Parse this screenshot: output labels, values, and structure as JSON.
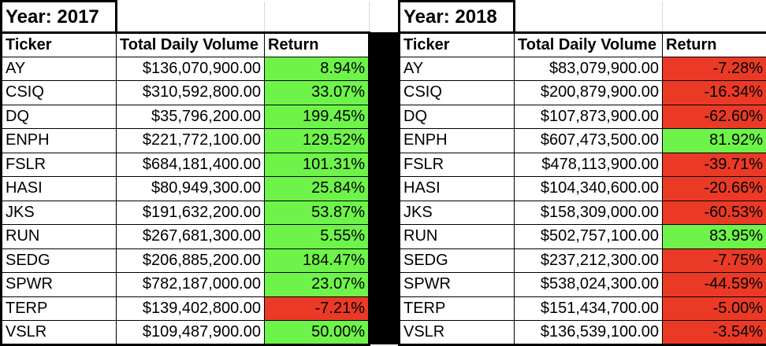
{
  "colors": {
    "positive": "#6ef34a",
    "negative": "#ea3a26"
  },
  "tables": [
    {
      "title": "Year: 2017",
      "headers": [
        "Ticker",
        "Total Daily Volume",
        "Return"
      ],
      "rows": [
        {
          "ticker": "AY",
          "volume": "$136,070,900.00",
          "return": "8.94%",
          "sign": "pos"
        },
        {
          "ticker": "CSIQ",
          "volume": "$310,592,800.00",
          "return": "33.07%",
          "sign": "pos"
        },
        {
          "ticker": "DQ",
          "volume": "$35,796,200.00",
          "return": "199.45%",
          "sign": "pos"
        },
        {
          "ticker": "ENPH",
          "volume": "$221,772,100.00",
          "return": "129.52%",
          "sign": "pos"
        },
        {
          "ticker": "FSLR",
          "volume": "$684,181,400.00",
          "return": "101.31%",
          "sign": "pos"
        },
        {
          "ticker": "HASI",
          "volume": "$80,949,300.00",
          "return": "25.84%",
          "sign": "pos"
        },
        {
          "ticker": "JKS",
          "volume": "$191,632,200.00",
          "return": "53.87%",
          "sign": "pos"
        },
        {
          "ticker": "RUN",
          "volume": "$267,681,300.00",
          "return": "5.55%",
          "sign": "pos"
        },
        {
          "ticker": "SEDG",
          "volume": "$206,885,200.00",
          "return": "184.47%",
          "sign": "pos"
        },
        {
          "ticker": "SPWR",
          "volume": "$782,187,000.00",
          "return": "23.07%",
          "sign": "pos"
        },
        {
          "ticker": "TERP",
          "volume": "$139,402,800.00",
          "return": "-7.21%",
          "sign": "neg"
        },
        {
          "ticker": "VSLR",
          "volume": "$109,487,900.00",
          "return": "50.00%",
          "sign": "pos"
        }
      ]
    },
    {
      "title": "Year: 2018",
      "headers": [
        "Ticker",
        "Total Daily Volume",
        "Return"
      ],
      "rows": [
        {
          "ticker": "AY",
          "volume": "$83,079,900.00",
          "return": "-7.28%",
          "sign": "neg"
        },
        {
          "ticker": "CSIQ",
          "volume": "$200,879,900.00",
          "return": "-16.34%",
          "sign": "neg"
        },
        {
          "ticker": "DQ",
          "volume": "$107,873,900.00",
          "return": "-62.60%",
          "sign": "neg"
        },
        {
          "ticker": "ENPH",
          "volume": "$607,473,500.00",
          "return": "81.92%",
          "sign": "pos"
        },
        {
          "ticker": "FSLR",
          "volume": "$478,113,900.00",
          "return": "-39.71%",
          "sign": "neg"
        },
        {
          "ticker": "HASI",
          "volume": "$104,340,600.00",
          "return": "-20.66%",
          "sign": "neg"
        },
        {
          "ticker": "JKS",
          "volume": "$158,309,000.00",
          "return": "-60.53%",
          "sign": "neg"
        },
        {
          "ticker": "RUN",
          "volume": "$502,757,100.00",
          "return": "83.95%",
          "sign": "pos"
        },
        {
          "ticker": "SEDG",
          "volume": "$237,212,300.00",
          "return": "-7.75%",
          "sign": "neg"
        },
        {
          "ticker": "SPWR",
          "volume": "$538,024,300.00",
          "return": "-44.59%",
          "sign": "neg"
        },
        {
          "ticker": "TERP",
          "volume": "$151,434,700.00",
          "return": "-5.00%",
          "sign": "neg"
        },
        {
          "ticker": "VSLR",
          "volume": "$136,539,100.00",
          "return": "-3.54%",
          "sign": "neg"
        }
      ]
    }
  ]
}
